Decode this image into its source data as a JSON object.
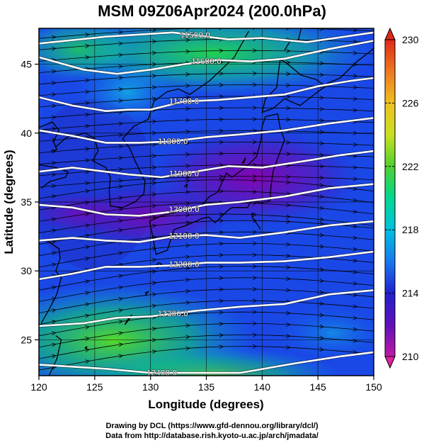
{
  "title": "MSM 09Z06Apr2024 (200.0hPa)",
  "footer": {
    "drawing_credit": "Drawing by DCL (https://www.gfd-dennou.org/library/dcl/)",
    "data_credit": "Data from http://database.rish.kyoto-u.ac.jp/arch/jmadata/"
  },
  "chart_data": {
    "type": "heatmap",
    "title": "MSM 09Z06Apr2024 (200.0hPa)",
    "xlabel": "Longitude (degrees)",
    "ylabel": "Latitude  (degrees)",
    "xlim": [
      120,
      150
    ],
    "ylim": [
      22.4,
      47.6
    ],
    "x_ticks": [
      120,
      125,
      130,
      135,
      140,
      145,
      150
    ],
    "y_ticks": [
      25,
      30,
      35,
      40,
      45
    ],
    "colorbar": {
      "min": 210,
      "max": 230,
      "tick_labels": [
        "230",
        "226",
        "222",
        "218",
        "214",
        "210"
      ],
      "tick_values": [
        230,
        226,
        222,
        218,
        214,
        210
      ],
      "colors": [
        "#e0209a",
        "#9b00b4",
        "#5a10b8",
        "#2020d0",
        "#1a50f0",
        "#1e90ff",
        "#00c8d8",
        "#00d890",
        "#20d040",
        "#7adc20",
        "#c8e020",
        "#f0c020",
        "#f08020",
        "#e03020"
      ]
    },
    "contours": [
      {
        "label": "11500.0",
        "points": [
          [
            120,
            46.5
          ],
          [
            126,
            47.0
          ],
          [
            132,
            47.3
          ],
          [
            137,
            46.8
          ],
          [
            140,
            46.9
          ],
          [
            144,
            46.6
          ],
          [
            150,
            47.3
          ]
        ]
      },
      {
        "label": "11600.0",
        "points": [
          [
            120,
            45.5
          ],
          [
            124,
            44.6
          ],
          [
            127,
            44.3
          ],
          [
            130,
            44.6
          ],
          [
            133,
            45.0
          ],
          [
            136,
            45.3
          ],
          [
            139,
            45.2
          ],
          [
            142,
            45.4
          ],
          [
            146,
            46.1
          ],
          [
            150,
            46.7
          ]
        ]
      },
      {
        "label": "11700.0",
        "points": [
          [
            120,
            42.6
          ],
          [
            123,
            42.0
          ],
          [
            126,
            41.6
          ],
          [
            128,
            41.7
          ],
          [
            130,
            41.7
          ],
          [
            133,
            42.3
          ],
          [
            136,
            42.4
          ],
          [
            139,
            42.6
          ],
          [
            142,
            42.8
          ],
          [
            145,
            43.4
          ],
          [
            148,
            43.8
          ],
          [
            150,
            44.0
          ]
        ]
      },
      {
        "label": "11800.0",
        "points": [
          [
            120,
            40.2
          ],
          [
            123,
            39.8
          ],
          [
            126,
            39.3
          ],
          [
            129,
            39.3
          ],
          [
            132,
            39.4
          ],
          [
            135,
            39.7
          ],
          [
            138,
            39.9
          ],
          [
            142,
            40.2
          ],
          [
            146,
            40.7
          ],
          [
            150,
            41.1
          ]
        ]
      },
      {
        "label": "11900.0",
        "points": [
          [
            120,
            37.2
          ],
          [
            123,
            37.5
          ],
          [
            126,
            37.2
          ],
          [
            128,
            37.0
          ],
          [
            131,
            36.8
          ],
          [
            134,
            37.2
          ],
          [
            137,
            37.6
          ],
          [
            140,
            37.5
          ],
          [
            144,
            38.0
          ],
          [
            147,
            38.4
          ],
          [
            150,
            38.7
          ]
        ]
      },
      {
        "label": "12000.0",
        "points": [
          [
            120,
            34.8
          ],
          [
            123,
            34.6
          ],
          [
            126,
            34.1
          ],
          [
            129,
            34.0
          ],
          [
            132,
            34.3
          ],
          [
            135,
            34.8
          ],
          [
            138,
            35.0
          ],
          [
            142,
            35.4
          ],
          [
            146,
            36.0
          ],
          [
            150,
            36.3
          ]
        ]
      },
      {
        "label": "12100.0",
        "points": [
          [
            120,
            32.2
          ],
          [
            123,
            32.4
          ],
          [
            126,
            32.2
          ],
          [
            129,
            32.1
          ],
          [
            132,
            32.5
          ],
          [
            135,
            32.6
          ],
          [
            138,
            32.4
          ],
          [
            142,
            32.8
          ],
          [
            146,
            33.3
          ],
          [
            150,
            33.6
          ]
        ]
      },
      {
        "label": "12200.0",
        "points": [
          [
            120,
            29.4
          ],
          [
            123,
            29.8
          ],
          [
            126,
            30.3
          ],
          [
            129,
            30.3
          ],
          [
            132,
            30.4
          ],
          [
            135,
            30.6
          ],
          [
            138,
            30.6
          ],
          [
            142,
            30.7
          ],
          [
            146,
            31.0
          ],
          [
            150,
            31.4
          ]
        ]
      },
      {
        "label": "12300.0",
        "points": [
          [
            120,
            26.0
          ],
          [
            124,
            26.2
          ],
          [
            127,
            26.6
          ],
          [
            130,
            26.7
          ],
          [
            134,
            27.1
          ],
          [
            138,
            27.4
          ],
          [
            142,
            27.6
          ],
          [
            146,
            28.3
          ],
          [
            150,
            28.6
          ]
        ]
      },
      {
        "label": "12400.0",
        "points": [
          [
            120,
            23.2
          ],
          [
            126,
            22.9
          ],
          [
            130,
            22.6
          ],
          [
            138,
            22.6
          ],
          [
            143,
            23.3
          ],
          [
            147,
            23.8
          ],
          [
            150,
            24.1
          ]
        ]
      }
    ]
  }
}
